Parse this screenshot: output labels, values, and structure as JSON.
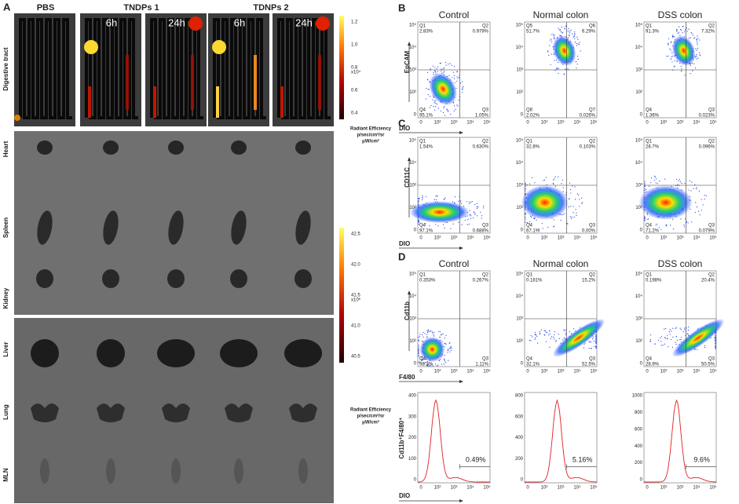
{
  "panel_a": {
    "label": "A",
    "groups": [
      "PBS",
      "TNDPs 1",
      "TDNPs 2"
    ],
    "timepoints": [
      "6h",
      "24h",
      "6h",
      "24h"
    ],
    "rows": [
      "Digestive tract",
      "Heart",
      "Spleen",
      "Kidney",
      "Liver",
      "Lung",
      "MLN"
    ],
    "colorbar_1": {
      "ticks": [
        "1.2",
        "1.0",
        "0.8",
        "0.6",
        "0.4"
      ],
      "multiplier": "x10⁴",
      "title": "Radiant Efficiency",
      "units": [
        "p/sec/cm²/sr",
        "μW/cm²"
      ]
    },
    "colorbar_2": {
      "ticks": [
        "42.5",
        "42.0",
        "41.5",
        "41.0",
        "40.5"
      ],
      "multiplier": "x10⁶",
      "title": "Radiant Efficiency",
      "units": [
        "p/sec/cm²/sr",
        "μW/cm²"
      ]
    }
  },
  "flow": {
    "log_ticks": [
      "0",
      "10²",
      "10³",
      "10⁴",
      "10⁵"
    ],
    "titles": [
      "Control",
      "Normal colon",
      "DSS  colon"
    ],
    "panels": [
      {
        "label": "B",
        "y_label": "EpCAM",
        "x_label": "DIO",
        "plots": [
          [
            {
              "q": "Q1",
              "pct": "2.83%"
            },
            {
              "q": "Q2",
              "pct": "0.979%"
            },
            {
              "q": "Q4",
              "pct": "95.1%"
            },
            {
              "q": "Q3",
              "pct": "1.05%"
            }
          ],
          [
            {
              "q": "Q5",
              "pct": "51.7%"
            },
            {
              "q": "Q6",
              "pct": "6.29%"
            },
            {
              "q": "Q8",
              "pct": "2.02%"
            },
            {
              "q": "Q7",
              "pct": "0.026%"
            }
          ],
          [
            {
              "q": "Q1",
              "pct": "91.3%"
            },
            {
              "q": "Q2",
              "pct": "7.32%"
            },
            {
              "q": "Q4",
              "pct": "1.36%"
            },
            {
              "q": "Q3",
              "pct": "0.023%"
            }
          ]
        ]
      },
      {
        "label": "C",
        "y_label": "CD11C",
        "x_label": "DIO",
        "plots": [
          [
            {
              "q": "Q1",
              "pct": "1.54%"
            },
            {
              "q": "Q2",
              "pct": "0.630%"
            },
            {
              "q": "Q4",
              "pct": "97.1%"
            },
            {
              "q": "Q3",
              "pct": "0.688%"
            }
          ],
          [
            {
              "q": "Q1",
              "pct": "32.8%"
            },
            {
              "q": "Q2",
              "pct": "0.103%"
            },
            {
              "q": "Q4",
              "pct": "67.1%"
            },
            {
              "q": "Q3",
              "pct": "0.00%"
            }
          ],
          [
            {
              "q": "Q1",
              "pct": "28.7%"
            },
            {
              "q": "Q2",
              "pct": "0.096%"
            },
            {
              "q": "Q4",
              "pct": "71.2%"
            },
            {
              "q": "Q3",
              "pct": "0.079%"
            }
          ]
        ]
      },
      {
        "label": "D",
        "y_label": "Cd11b",
        "x_label": "F4/80",
        "plots": [
          [
            {
              "q": "Q1",
              "pct": "0.353%"
            },
            {
              "q": "Q2",
              "pct": "0.267%"
            },
            {
              "q": "Q4",
              "pct": "98.3%"
            },
            {
              "q": "Q3",
              "pct": "1.11%"
            }
          ],
          [
            {
              "q": "Q1",
              "pct": "0.181%"
            },
            {
              "q": "Q2",
              "pct": "15.2%"
            },
            {
              "q": "Q4",
              "pct": "32.1%"
            },
            {
              "q": "Q3",
              "pct": "52.5%"
            }
          ],
          [
            {
              "q": "Q1",
              "pct": "0.198%"
            },
            {
              "q": "Q2",
              "pct": "20.4%"
            },
            {
              "q": "Q4",
              "pct": "28.9%"
            },
            {
              "q": "Q3",
              "pct": "50.5%"
            }
          ]
        ]
      }
    ]
  },
  "histograms": {
    "y_label": "Cd11b⁺F4/80⁺",
    "x_label": "DIO",
    "plots": [
      {
        "yticks": [
          "400",
          "300",
          "200",
          "100",
          "0"
        ],
        "gate": "0.49%"
      },
      {
        "yticks": [
          "800",
          "600",
          "400",
          "200",
          "0"
        ],
        "gate": "5.16%"
      },
      {
        "yticks": [
          "1000",
          "800",
          "600",
          "400",
          "200",
          "0"
        ],
        "gate": "9.6%"
      }
    ]
  }
}
